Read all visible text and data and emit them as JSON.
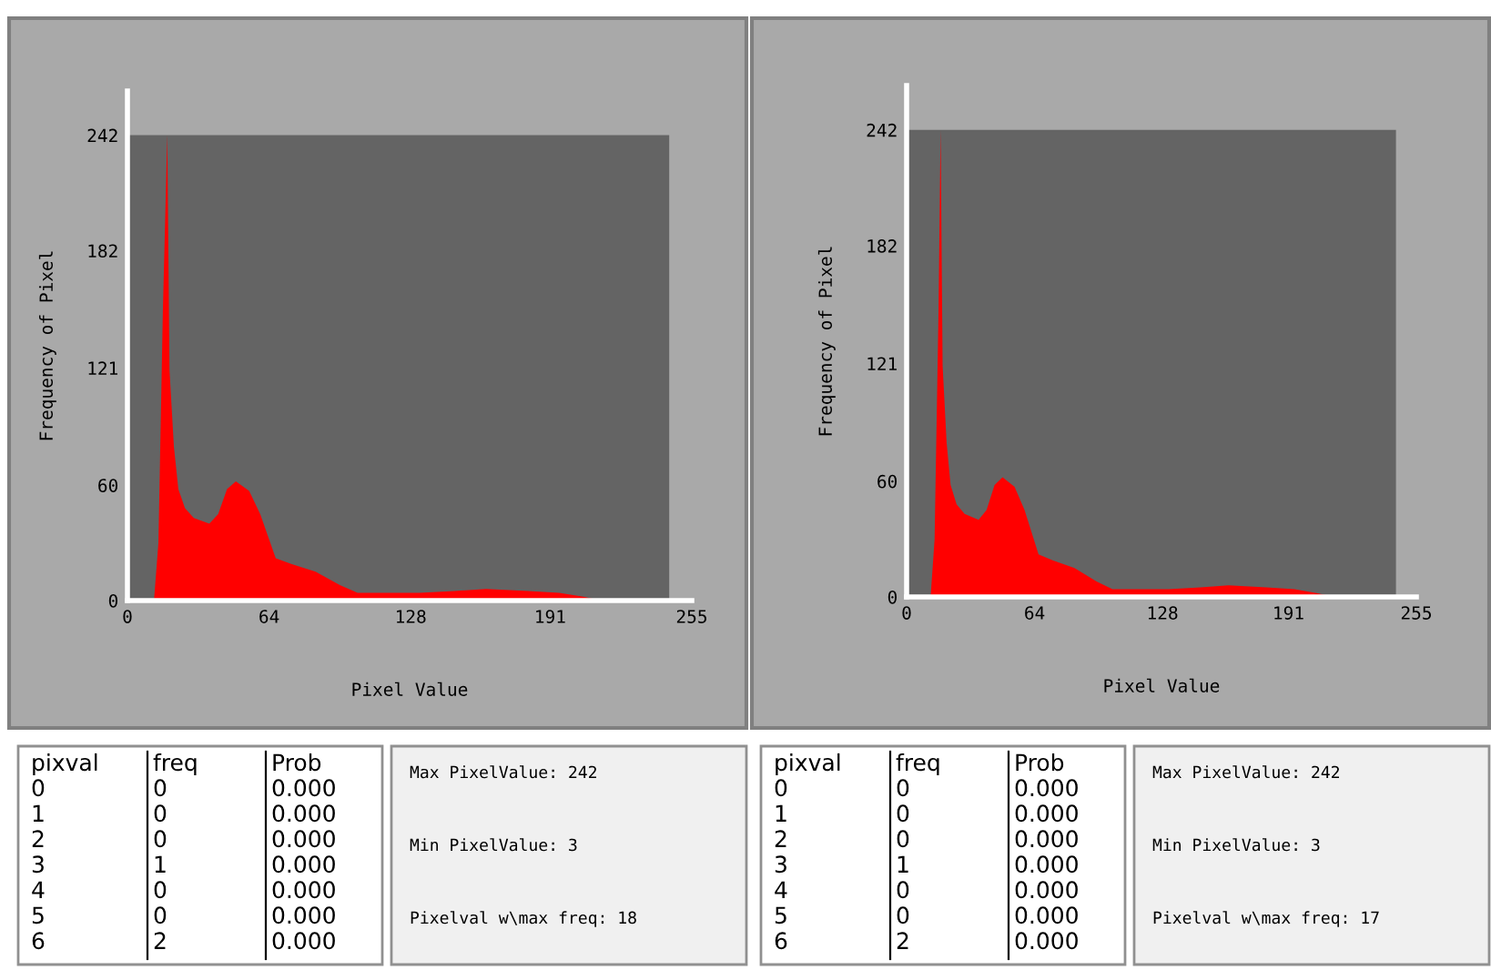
{
  "chart_data": [
    {
      "type": "area",
      "xlabel": "Pixel Value",
      "ylabel": "Frequency of Pixel",
      "color": "#ff0000",
      "x": [
        12,
        14,
        16,
        18,
        19,
        21,
        23,
        26,
        30,
        37,
        41,
        45,
        49,
        55,
        60,
        67,
        74,
        85,
        96,
        104,
        132,
        148,
        162,
        181,
        195,
        206,
        214
      ],
      "values": [
        0,
        30,
        150,
        242,
        120,
        80,
        58,
        48,
        43,
        40,
        45,
        58,
        62,
        57,
        45,
        22,
        19,
        15,
        8,
        4,
        4,
        5,
        6,
        5,
        4,
        2,
        0
      ],
      "xlim": [
        0,
        255
      ],
      "xticks": [
        0,
        64,
        128,
        191,
        255
      ],
      "ylim": [
        0,
        265
      ],
      "yticks": [
        0,
        60,
        121,
        182,
        242
      ],
      "grid": false,
      "annotations": [
        "pixval",
        "freq",
        "Prob",
        "0",
        "0",
        "0.000",
        "1",
        "0",
        "0.000",
        "2",
        "0",
        "0.000",
        "3",
        "1",
        "0.000",
        "4",
        "0",
        "0.000",
        "5",
        "0",
        "0.000",
        "6",
        "2",
        "0.000",
        "Max PixelValue: 242",
        "Min PixelValue: 3",
        "Pixelval w\\max freq: 18"
      ]
    },
    {
      "type": "area",
      "xlabel": "Pixel Value",
      "ylabel": "Frequency of Pixel",
      "color": "#ff0000",
      "x": [
        12,
        14,
        16,
        17,
        18,
        20,
        22,
        25,
        29,
        36,
        40,
        44,
        48,
        54,
        59,
        66,
        73,
        84,
        95,
        103,
        131,
        147,
        161,
        180,
        194,
        205,
        214
      ],
      "values": [
        0,
        30,
        150,
        242,
        120,
        80,
        58,
        48,
        43,
        40,
        45,
        58,
        62,
        57,
        45,
        22,
        19,
        15,
        8,
        4,
        4,
        5,
        6,
        5,
        4,
        2,
        0
      ],
      "xlim": [
        0,
        255
      ],
      "xticks": [
        0,
        64,
        128,
        191,
        255
      ],
      "ylim": [
        0,
        265
      ],
      "yticks": [
        0,
        60,
        121,
        182,
        242
      ],
      "grid": false,
      "annotations": [
        "pixval",
        "freq",
        "Prob",
        "0",
        "0",
        "0.000",
        "1",
        "0",
        "0.000",
        "2",
        "0",
        "0.000",
        "3",
        "1",
        "0.000",
        "4",
        "0",
        "0.000",
        "5",
        "0",
        "0.000",
        "6",
        "2",
        "0.000",
        "Max PixelValue: 242",
        "Min PixelValue: 3",
        "Pixelval w\\max freq: 17"
      ]
    }
  ]
}
